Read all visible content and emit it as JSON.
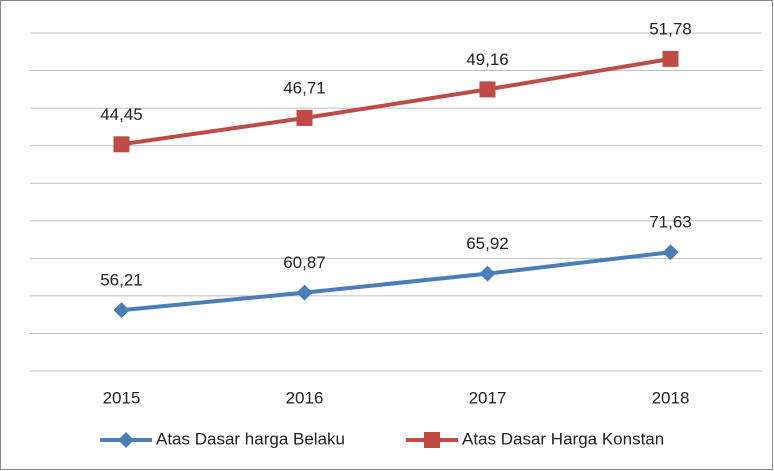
{
  "chart_data": {
    "type": "line",
    "categories": [
      "2015",
      "2016",
      "2017",
      "2018"
    ],
    "series": [
      {
        "name": "Atas Dasar harga Belaku",
        "color": "#4a7ebb",
        "marker": "diamond",
        "values": [
          56.21,
          60.87,
          65.92,
          71.63
        ],
        "value_labels": [
          "56,21",
          "60,87",
          "65,92",
          "71,63"
        ]
      },
      {
        "name": "Atas Dasar Harga Konstan",
        "color": "#be4b48",
        "marker": "square",
        "axis": "y2",
        "values": [
          44.45,
          46.71,
          49.16,
          51.78
        ],
        "value_labels": [
          "44,45",
          "46,71",
          "49,16",
          "51,78"
        ]
      }
    ],
    "ylim": [
      40,
      130
    ],
    "yticks": [
      40,
      50,
      60,
      70,
      80,
      90,
      100,
      110,
      120,
      130
    ],
    "y2lim": [
      25,
      54
    ],
    "grid": true,
    "legend": "bottom"
  }
}
